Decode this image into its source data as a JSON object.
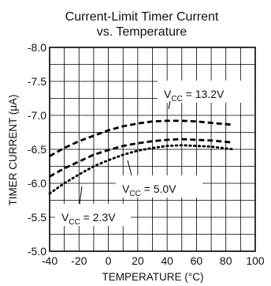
{
  "chart_data": {
    "type": "line",
    "title": "Current-Limit Timer Current",
    "subtitle": "vs. Temperature",
    "xlabel": "TEMPERATURE (°C)",
    "ylabel": "TIMER CURRENT (μA)",
    "xlim": [
      -40,
      100
    ],
    "ylim": [
      -5.0,
      -8.0
    ],
    "y_axis_inverted": true,
    "xticks": [
      -40,
      -20,
      0,
      20,
      40,
      60,
      80,
      100
    ],
    "xtick_labels": [
      "-40",
      "-20",
      "0",
      "20",
      "40",
      "60",
      "80",
      "100"
    ],
    "yticks": [
      -8.0,
      -7.5,
      -7.0,
      -6.5,
      -6.0,
      -5.5,
      -5.0
    ],
    "ytick_labels": [
      "-8.0",
      "-7.5",
      "-7.0",
      "-6.5",
      "-6.0",
      "-5.5",
      "-5.0"
    ],
    "grid": true,
    "legend": "none",
    "series": [
      {
        "name": "VCC = 13.2V",
        "label_main": "V",
        "label_sub": "CC",
        "label_rest": " = 13.2V",
        "style": "dashed",
        "x": [
          -40,
          -30,
          -20,
          -10,
          0,
          10,
          20,
          30,
          40,
          50,
          60,
          70,
          85
        ],
        "y": [
          -6.4,
          -6.52,
          -6.62,
          -6.7,
          -6.78,
          -6.84,
          -6.88,
          -6.91,
          -6.92,
          -6.92,
          -6.91,
          -6.89,
          -6.86
        ]
      },
      {
        "name": "VCC = 5.0V",
        "label_main": "V",
        "label_sub": "CC",
        "label_rest": " = 5.0V",
        "style": "dashed",
        "x": [
          -40,
          -30,
          -20,
          -10,
          0,
          10,
          20,
          30,
          40,
          50,
          60,
          70,
          85
        ],
        "y": [
          -6.1,
          -6.22,
          -6.32,
          -6.42,
          -6.49,
          -6.55,
          -6.59,
          -6.62,
          -6.64,
          -6.65,
          -6.64,
          -6.63,
          -6.6
        ]
      },
      {
        "name": "VCC = 2.3V",
        "label_main": "V",
        "label_sub": "CC",
        "label_rest": " = 2.3V",
        "style": "dotted",
        "x": [
          -40,
          -30,
          -20,
          -10,
          0,
          10,
          20,
          30,
          40,
          50,
          60,
          70,
          85
        ],
        "y": [
          -5.85,
          -6.0,
          -6.13,
          -6.25,
          -6.34,
          -6.42,
          -6.48,
          -6.52,
          -6.55,
          -6.56,
          -6.55,
          -6.54,
          -6.5
        ]
      }
    ]
  }
}
